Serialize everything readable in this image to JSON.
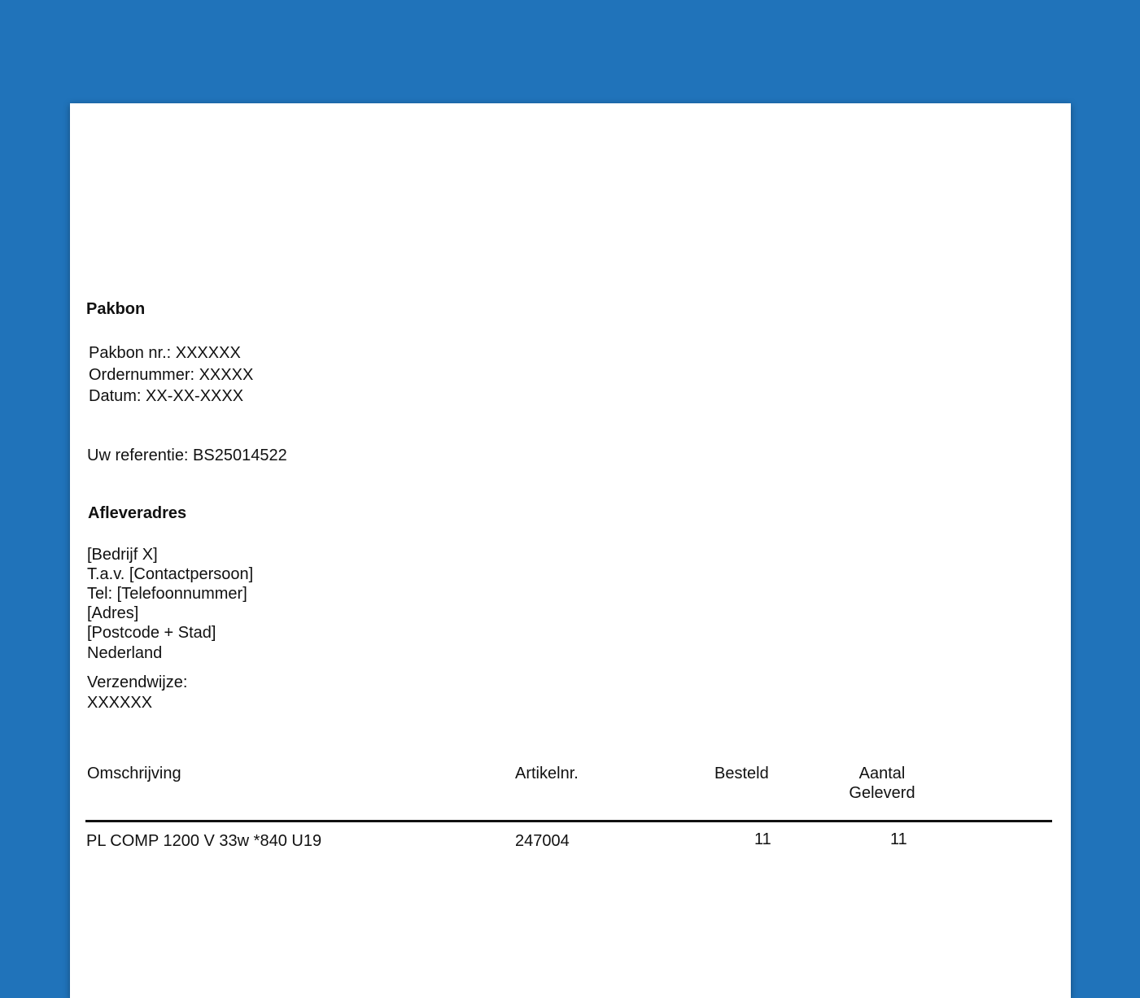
{
  "title": "Pakbon",
  "info": {
    "pakbon_nr": "Pakbon nr.: XXXXXX",
    "ordernummer": "Ordernummer: XXXXX",
    "datum": "Datum: XX-XX-XXXX"
  },
  "referentie": "Uw referentie: BS25014522",
  "address": {
    "heading": "Afleveradres",
    "lines": [
      "[Bedrijf X]",
      "T.a.v. [Contactpersoon]",
      "Tel: [Telefoonnummer]",
      "[Adres]",
      "[Postcode + Stad]",
      "Nederland"
    ]
  },
  "shipping": {
    "label": "Verzendwijze:",
    "value": "XXXXXX"
  },
  "table": {
    "headers": [
      "Omschrijving",
      "Artikelnr.",
      "Besteld",
      "Aantal",
      "Geleverd"
    ],
    "rows": [
      {
        "omschrijving": "PL COMP 1200 V 33w *840 U19",
        "artikelnr": "247004",
        "besteld": "11",
        "geleverd": "11"
      }
    ]
  }
}
